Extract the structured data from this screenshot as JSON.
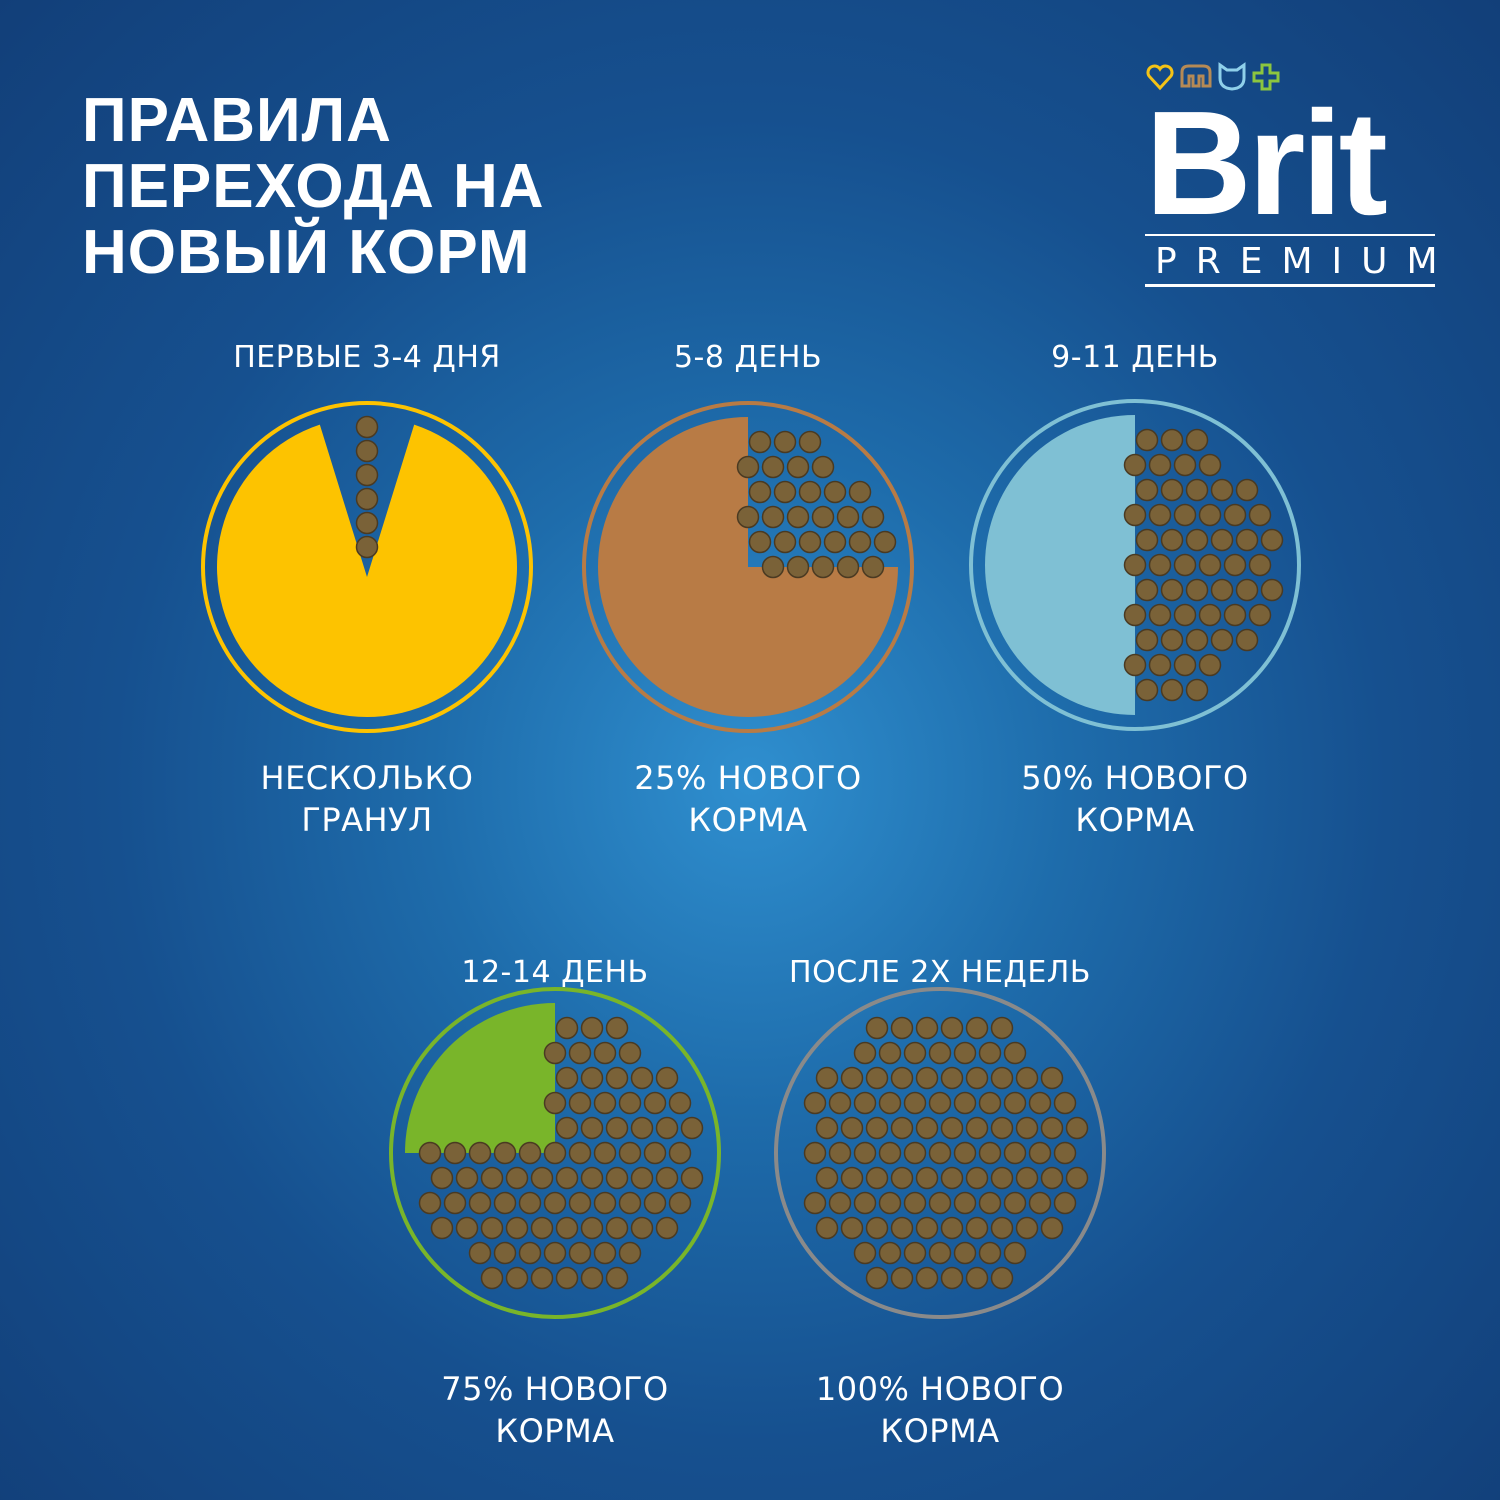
{
  "title": [
    "ПРАВИЛА",
    "ПЕРЕХОДА НА",
    "НОВЫЙ КОРМ"
  ],
  "logo": {
    "brand": "Brit",
    "line": "PREMIUM",
    "icons": [
      "heart-icon",
      "dog-icon",
      "cat-icon",
      "plus-icon"
    ],
    "icon_colors": [
      "#f4c316",
      "#b58a55",
      "#8fd0ea",
      "#8cc63f"
    ]
  },
  "stages": [
    {
      "period": "ПЕРВЫЕ 3-4 ДНЯ",
      "caption": [
        "НЕСКОЛЬКО",
        "ГРАНУЛ"
      ],
      "new_food": "few",
      "color": "#fdc300"
    },
    {
      "period": "5-8 ДЕНЬ",
      "caption": [
        "25% НОВОГО",
        "КОРМА"
      ],
      "new_food": 0.25,
      "color": "#b87b45"
    },
    {
      "period": "9-11 ДЕНЬ",
      "caption": [
        "50% НОВОГО",
        "КОРМА"
      ],
      "new_food": 0.5,
      "color": "#7fc0d4"
    },
    {
      "period": "12-14 ДЕНЬ",
      "caption": [
        "75% НОВОГО",
        "КОРМА"
      ],
      "new_food": 0.75,
      "color": "#79b52a"
    },
    {
      "period": "ПОСЛЕ 2Х НЕДЕЛЬ",
      "caption": [
        "100% НОВОГО",
        "КОРМА"
      ],
      "new_food": 1,
      "color": "#8a8a8a"
    }
  ]
}
